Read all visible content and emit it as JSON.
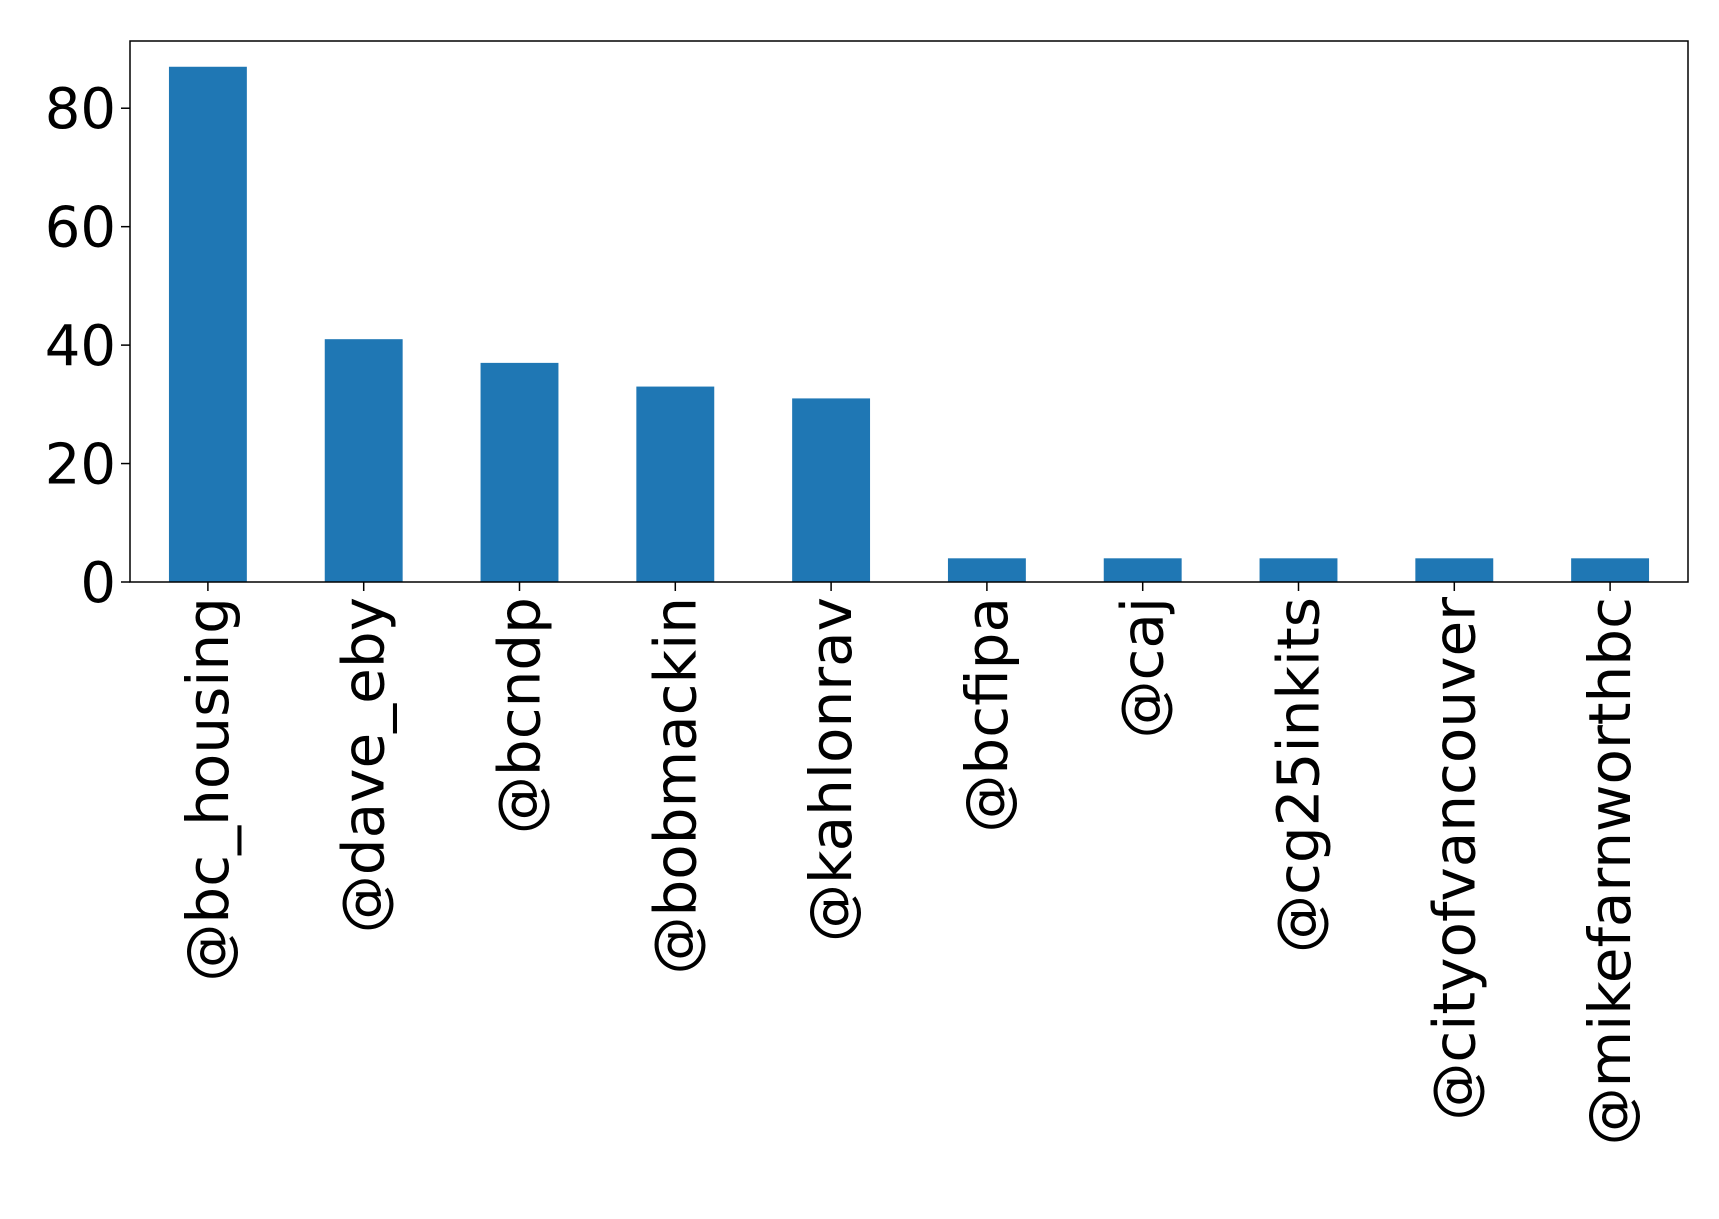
{
  "chart_data": {
    "type": "bar",
    "title": "",
    "xlabel": "",
    "ylabel": "",
    "categories": [
      "@bc_housing",
      "@dave_eby",
      "@bcndp",
      "@bobmackin",
      "@kahlonrav",
      "@bcfipa",
      "@caj",
      "@cg25inkits",
      "@cityofvancouver",
      "@mikefarnworthbc"
    ],
    "values": [
      87,
      41,
      37,
      33,
      31,
      4,
      4,
      4,
      4,
      4
    ],
    "ylim": [
      0,
      91.35
    ],
    "yticks": [
      0,
      20,
      40,
      60,
      80
    ],
    "bar_color": "#1f77b4",
    "grid": false,
    "legend": "none"
  }
}
